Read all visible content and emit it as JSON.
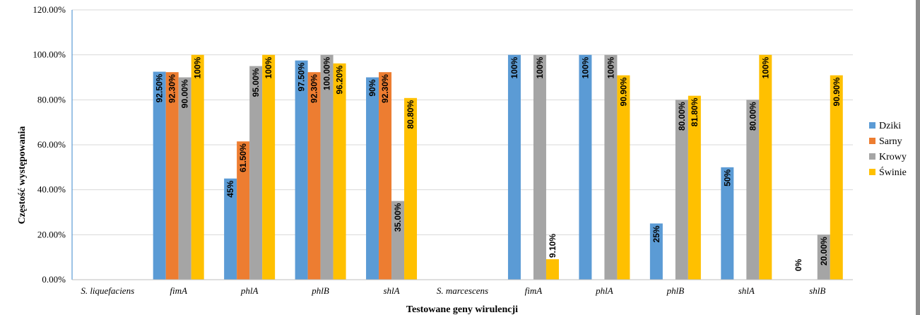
{
  "chart_data": {
    "type": "bar",
    "xlabel": "Testowane geny wirulencji",
    "ylabel": "Częstość występowania",
    "ylim": [
      0,
      120
    ],
    "yticks": [
      "0.00%",
      "20.00%",
      "40.00%",
      "60.00%",
      "80.00%",
      "100.00%",
      "120.00%"
    ],
    "grid": true,
    "legend_position": "right",
    "categories": [
      "S. liquefaciens",
      "fimA",
      "phlA",
      "phlB",
      "shlA",
      "S. marcescens",
      "fimA",
      "phlA",
      "phlB",
      "shlA",
      "shlB"
    ],
    "series": [
      {
        "name": "Dziki",
        "color": "#5b9bd5",
        "values": [
          null,
          92.5,
          45,
          97.5,
          90,
          null,
          100,
          100,
          25,
          50,
          0
        ],
        "labels": [
          null,
          "92.50%",
          "45%",
          "97.50%",
          "90%",
          null,
          "100%",
          "100%",
          "25%",
          "50%",
          "0%"
        ]
      },
      {
        "name": "Sarny",
        "color": "#ed7d31",
        "values": [
          null,
          92.3,
          61.5,
          92.3,
          92.3,
          null,
          null,
          null,
          null,
          null,
          null
        ],
        "labels": [
          null,
          "92.30%",
          "61.50%",
          "92.30%",
          "92.30%",
          null,
          null,
          null,
          null,
          null,
          null
        ]
      },
      {
        "name": "Krowy",
        "color": "#a5a5a5",
        "values": [
          null,
          90,
          95,
          100,
          35,
          null,
          100,
          100,
          80,
          80,
          20
        ],
        "labels": [
          null,
          "90.00%",
          "95.00%",
          "100.00%",
          "35.00%",
          null,
          "100%",
          "100%",
          "80.00%",
          "80.00%",
          "20.00%"
        ]
      },
      {
        "name": "Świnie",
        "color": "#ffc000",
        "values": [
          null,
          100,
          100,
          96.2,
          80.8,
          null,
          9.1,
          90.9,
          81.8,
          100,
          90.9
        ],
        "labels": [
          null,
          "100%",
          "100%",
          "96.20%",
          "80.80%",
          null,
          "9.10%",
          "90.90%",
          "81.80%",
          "100%",
          "90.90%"
        ]
      }
    ]
  }
}
